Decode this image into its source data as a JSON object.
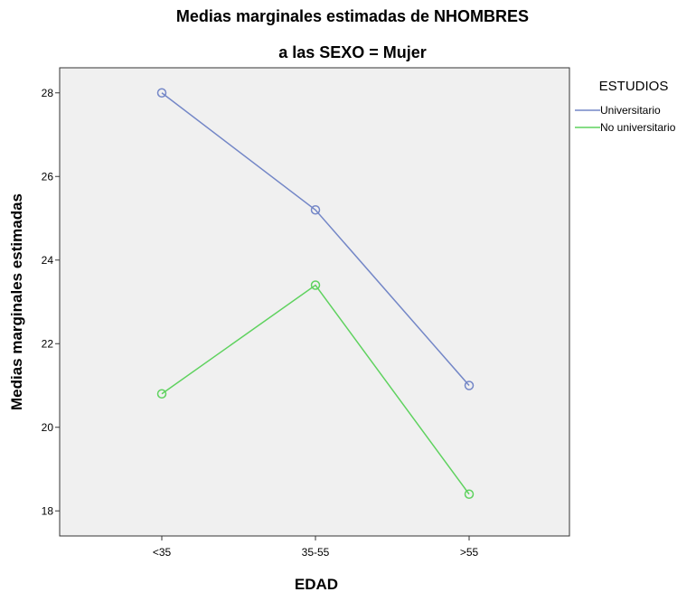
{
  "chart_data": {
    "type": "line",
    "title": "Medias marginales estimadas de NHOMBRES",
    "subtitle": "a las SEXO = Mujer",
    "xlabel": "EDAD",
    "ylabel": "Medias marginales estimadas",
    "categories": [
      "<35",
      "35-55",
      ">55"
    ],
    "ylim": [
      17.4,
      28.6
    ],
    "yticks": [
      18,
      20,
      22,
      24,
      26,
      28
    ],
    "grid": false,
    "legend": {
      "title": "ESTUDIOS",
      "position": "right"
    },
    "series": [
      {
        "name": "Universitario",
        "values": [
          28.0,
          25.2,
          21.0
        ],
        "color": "#7487c7"
      },
      {
        "name": "No universitario",
        "values": [
          20.8,
          23.4,
          18.4
        ],
        "color": "#5fd25f"
      }
    ],
    "plot_background": "#f0f0f0"
  }
}
